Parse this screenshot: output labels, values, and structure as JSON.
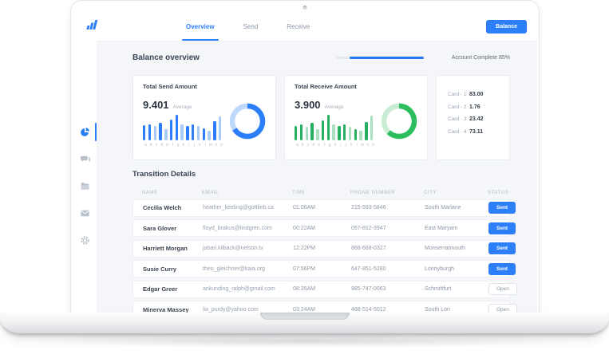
{
  "header": {
    "tabs": [
      {
        "label": "Overview",
        "active": true
      },
      {
        "label": "Send",
        "active": false
      },
      {
        "label": "Receive",
        "active": false
      }
    ],
    "balance_button": "Balance"
  },
  "overview": {
    "title": "Balance overview",
    "account_complete": "Account Complete 85%",
    "progress_percent": 85
  },
  "sidebar": {
    "items": [
      {
        "icon": "dashboard",
        "active": true
      },
      {
        "icon": "chat",
        "active": false
      },
      {
        "icon": "folder",
        "active": false
      },
      {
        "icon": "mail",
        "active": false
      },
      {
        "icon": "settings",
        "active": false
      }
    ]
  },
  "colors": {
    "primary_blue": "#2d7ff9",
    "light_blue": "#a9cbfa",
    "dark_green": "#27ae60",
    "light_green": "#aadfc0",
    "background": "#f4f6f9"
  },
  "chart_data": [
    {
      "type": "bar",
      "title": "Total Send Amount",
      "total": "9.401",
      "total_suffix": "Average",
      "categories": [
        "a",
        "b",
        "c",
        "d",
        "e",
        "f",
        "g",
        "h",
        "i",
        "j",
        "k",
        "l",
        "m",
        "n",
        "o"
      ],
      "values": [
        5.6,
        6.0,
        5.2,
        6.6,
        4.2,
        7.6,
        9.4,
        5.8,
        5.4,
        6.0,
        5.2,
        4.4,
        3.4,
        7.0,
        8.8
      ],
      "variants": [
        "dark",
        "dark",
        "light",
        "dark",
        "light",
        "dark",
        "dark",
        "light",
        "dark",
        "dark",
        "light",
        "dark",
        "light",
        "dark",
        "light"
      ],
      "colors": {
        "dark": "#2d7ff9",
        "light": "#a9cbfa"
      },
      "ylim": [
        0,
        10
      ],
      "donut": {
        "percent": 66,
        "arc_color": "#2d7ff9",
        "track_color": "#c0d8fb"
      }
    },
    {
      "type": "bar",
      "title": "Total Receive Amount",
      "total": "3.900",
      "total_suffix": "Average",
      "categories": [
        "a",
        "b",
        "c",
        "d",
        "e",
        "f",
        "g",
        "h",
        "i",
        "j",
        "k",
        "l",
        "m",
        "n",
        "o"
      ],
      "values": [
        5.4,
        5.8,
        5.0,
        6.4,
        4.0,
        7.4,
        9.4,
        5.8,
        5.2,
        5.8,
        5.0,
        4.2,
        3.4,
        6.8,
        9.2
      ],
      "variants": [
        "dark",
        "dark",
        "light",
        "dark",
        "light",
        "dark",
        "dark",
        "light",
        "dark",
        "dark",
        "light",
        "dark",
        "light",
        "dark",
        "light"
      ],
      "colors": {
        "dark": "#27ae60",
        "light": "#aadfc0"
      },
      "ylim": [
        0,
        10
      ],
      "donut": {
        "percent": 62,
        "arc_color": "#2bbd5e",
        "track_color": "#c9ecd5"
      }
    }
  ],
  "cards_panel": {
    "rows": [
      {
        "label": "Card - 1",
        "value": "83.00"
      },
      {
        "label": "Card - 2",
        "value": "1.76"
      },
      {
        "label": "Card - 3",
        "value": "23.42"
      },
      {
        "label": "Card - 4",
        "value": "73.11"
      }
    ]
  },
  "table": {
    "title": "Transition Details",
    "headers": [
      "Name",
      "Email",
      "Time",
      "Phone Number",
      "City",
      "Status"
    ],
    "rows": [
      {
        "name": "Cecilia Welch",
        "email": "heather_keeling@gottlieb.ca",
        "time": "01:06AM",
        "phone": "215-593-5846",
        "city": "South Marlane",
        "status": "Sent",
        "status_variant": "sent"
      },
      {
        "name": "Sara Glover",
        "email": "floyd_brakus@lindgren.com",
        "time": "00:22AM",
        "phone": "057-812-3947",
        "city": "East Maryam",
        "status": "Sent",
        "status_variant": "sent"
      },
      {
        "name": "Harriett Morgan",
        "email": "jabari.kilback@nelson.tv",
        "time": "12:22PM",
        "phone": "866-668-0327",
        "city": "Monserratmouth",
        "status": "Sent",
        "status_variant": "sent"
      },
      {
        "name": "Susie Curry",
        "email": "theo_gleichner@kaia.org",
        "time": "07:56PM",
        "phone": "647-851-5280",
        "city": "Lonnyburgh",
        "status": "Sent",
        "status_variant": "sent"
      },
      {
        "name": "Edgar Greer",
        "email": "ankunding_ralph@gmail.com",
        "time": "08:35AM",
        "phone": "985-747-0063",
        "city": "Schmittfurt",
        "status": "Open",
        "status_variant": "open"
      },
      {
        "name": "Minerva Massey",
        "email": "lia_purdy@yahoo.com",
        "time": "03:24AM",
        "phone": "488-514-5012",
        "city": "South Lori",
        "status": "Open",
        "status_variant": "open"
      }
    ]
  }
}
